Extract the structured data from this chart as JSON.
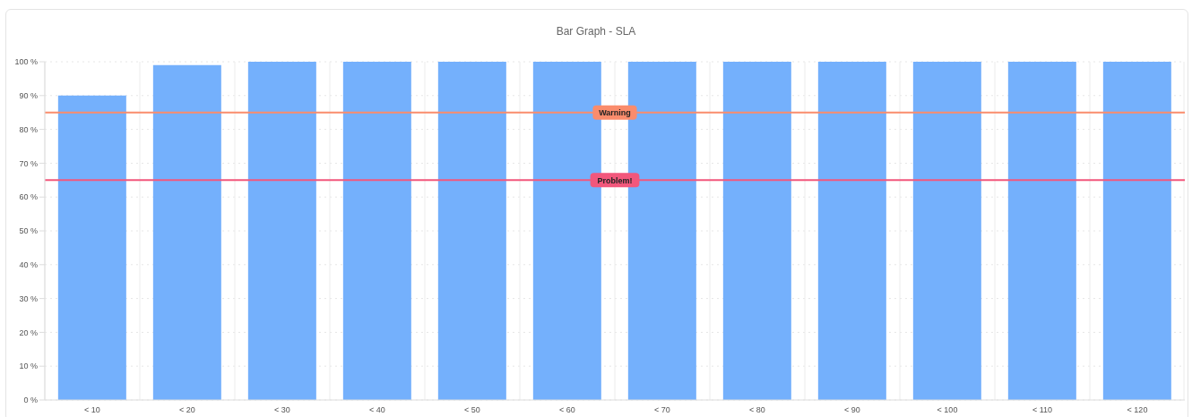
{
  "chart_data": {
    "type": "bar",
    "title": "Bar Graph - SLA",
    "categories": [
      "< 10",
      "< 20",
      "< 30",
      "< 40",
      "< 50",
      "< 60",
      "< 70",
      "< 80",
      "< 90",
      "< 100",
      "< 110",
      "< 120"
    ],
    "values": [
      90,
      99,
      100,
      100,
      100,
      100,
      100,
      100,
      100,
      100,
      100,
      100
    ],
    "color": "#74b0fc",
    "ylim": [
      0,
      100
    ],
    "yticks": [
      {
        "value": 0,
        "label": "0 %"
      },
      {
        "value": 10,
        "label": "10 %"
      },
      {
        "value": 20,
        "label": "20 %"
      },
      {
        "value": 30,
        "label": "30 %"
      },
      {
        "value": 40,
        "label": "40 %"
      },
      {
        "value": 50,
        "label": "50 %"
      },
      {
        "value": 60,
        "label": "60 %"
      },
      {
        "value": 70,
        "label": "70 %"
      },
      {
        "value": 80,
        "label": "80 %"
      },
      {
        "value": 90,
        "label": "90 %"
      },
      {
        "value": 100,
        "label": "100 %"
      }
    ],
    "ref_lines": [
      {
        "axis": "y",
        "value": 85,
        "label": "Warning",
        "color": "#fa8c6c"
      },
      {
        "axis": "y",
        "value": 65,
        "label": "Problem!",
        "color": "#f2577c"
      }
    ],
    "grid": true,
    "legend": false
  }
}
